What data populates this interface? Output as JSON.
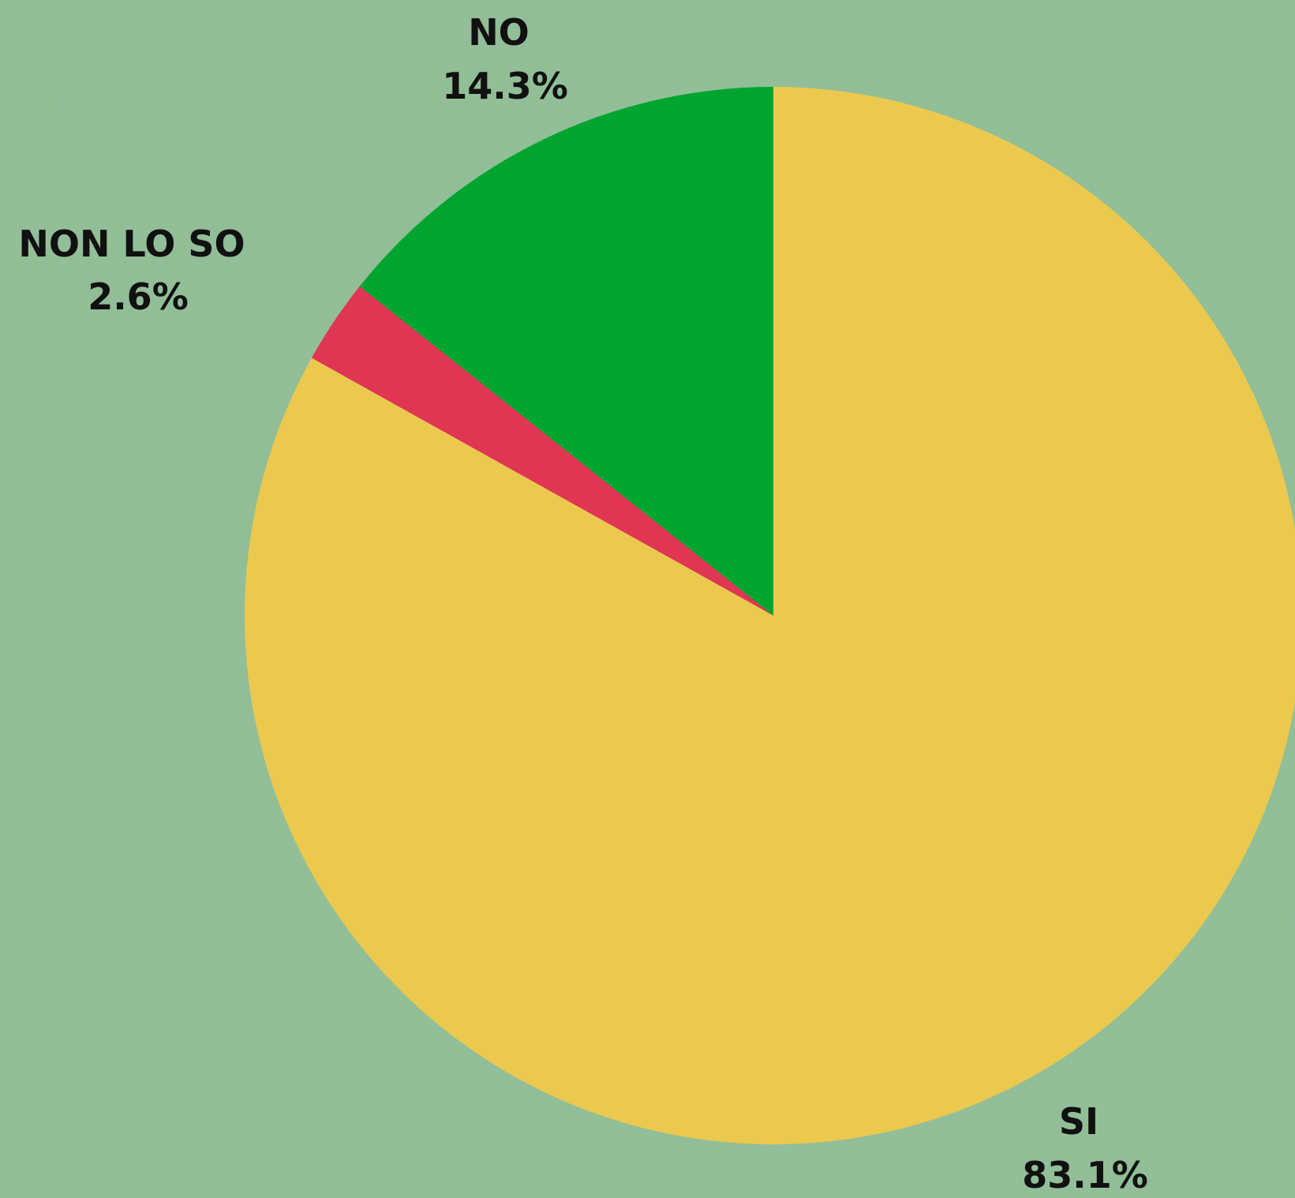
{
  "chart_data": {
    "type": "pie",
    "start_angle_deg": 0,
    "direction": "clockwise",
    "slices": [
      {
        "label": "SI",
        "value": 83.1,
        "value_label": "83.1%",
        "color": "#ebc94f"
      },
      {
        "label": "NON LO SO",
        "value": 2.6,
        "value_label": "2.6%",
        "color": "#e03553"
      },
      {
        "label": "NO",
        "value": 14.3,
        "value_label": "14.3%",
        "color": "#00a530"
      }
    ],
    "background_color": "#8fbd95"
  }
}
